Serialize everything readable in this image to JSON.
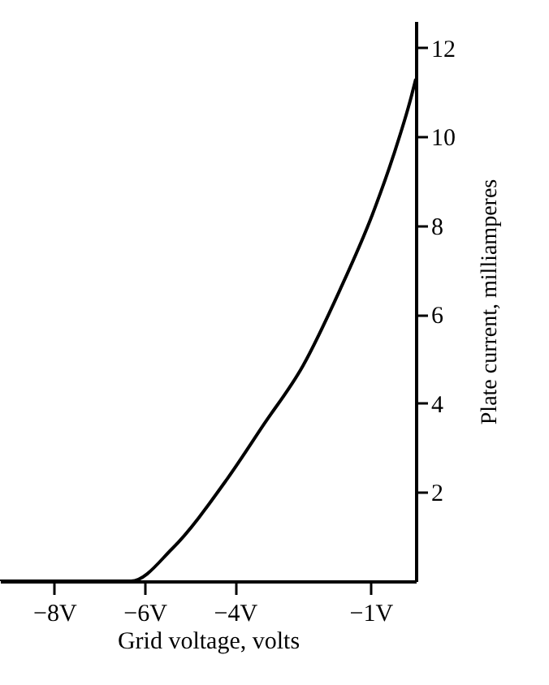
{
  "chart_data": {
    "type": "line",
    "xlabel": "Grid voltage, volts",
    "ylabel": "Plate current, milliamperes",
    "x": [
      -9.2,
      -6.3,
      -5.39,
      -4.18,
      -3.36,
      -2.5,
      -1.68,
      -0.96,
      -0.5,
      -0.1,
      0
    ],
    "series": [
      {
        "color": "#000000",
        "values": [
          0,
          0,
          0.73,
          2.29,
          3.53,
          4.84,
          6.55,
          8.25,
          9.56,
          10.9,
          11.3
        ]
      }
    ],
    "xlim": [
      -9.2,
      0
    ],
    "ylim": [
      0,
      12.6
    ],
    "xticks": [
      {
        "value": -8,
        "label": "−8V"
      },
      {
        "value": -6,
        "label": "−6V"
      },
      {
        "value": -4,
        "label": "−4V"
      },
      {
        "value": -1,
        "label": "−1V"
      }
    ],
    "yticks": [
      2,
      4,
      6,
      8,
      10,
      12
    ],
    "grid": false,
    "marker": "none",
    "line_style": "solid"
  }
}
